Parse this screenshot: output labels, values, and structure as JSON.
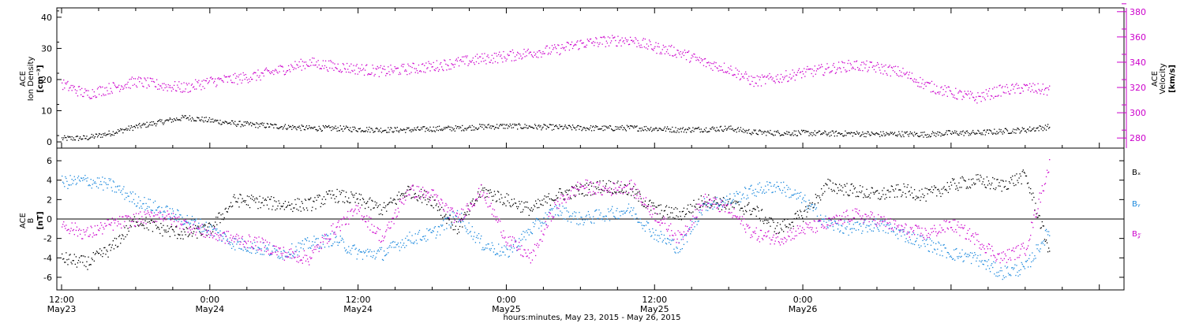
{
  "colors": {
    "density": "#000000",
    "velocity": "#cc00cc",
    "bx": "#000000",
    "by": "#1a88dd",
    "bz": "#cc00cc"
  },
  "chart_data": [
    {
      "type": "scatter",
      "panel": "top",
      "ylabel_left": [
        "ACE",
        "Ion Density",
        "[cm⁻³]"
      ],
      "ylabel_right": [
        "ACE",
        "Velocity",
        "[km/s]"
      ],
      "ylim_left": [
        -2,
        43
      ],
      "ylim_right": [
        272,
        383
      ],
      "yticks_left": [
        0,
        10,
        20,
        30,
        40
      ],
      "yticks_right": [
        280,
        300,
        320,
        340,
        360,
        380
      ],
      "series": [
        {
          "axis": "left",
          "color": "#000000",
          "hours": [
            0,
            2,
            4,
            6,
            8,
            10,
            12,
            14,
            16,
            18,
            20,
            22,
            24,
            26,
            28,
            30,
            32,
            34,
            36,
            38,
            40,
            42,
            44,
            46,
            48,
            50,
            52,
            54,
            56,
            58,
            60,
            62,
            64,
            66,
            68,
            70,
            72,
            74,
            76,
            78,
            80
          ],
          "values": [
            1.2,
            1.4,
            3.0,
            5.0,
            6.5,
            8.0,
            7.0,
            6.0,
            5.5,
            5.0,
            4.5,
            4.5,
            4.2,
            4.0,
            4.0,
            4.3,
            4.5,
            5.0,
            5.2,
            5.0,
            4.8,
            4.6,
            4.5,
            4.6,
            4.4,
            4.0,
            4.2,
            4.5,
            3.2,
            3.0,
            3.0,
            2.8,
            2.8,
            2.6,
            2.7,
            2.5,
            3.0,
            3.0,
            3.5,
            4.0,
            5.0
          ]
        },
        {
          "axis": "right",
          "color": "#cc00cc",
          "hours": [
            0,
            2,
            4,
            6,
            8,
            10,
            12,
            14,
            16,
            18,
            20,
            22,
            24,
            26,
            28,
            30,
            32,
            34,
            36,
            38,
            40,
            42,
            44,
            46,
            48,
            50,
            52,
            54,
            56,
            58,
            60,
            62,
            64,
            66,
            68,
            70,
            72,
            74,
            76,
            78,
            80
          ],
          "values": [
            323,
            315,
            320,
            325,
            322,
            320,
            325,
            327,
            330,
            335,
            340,
            337,
            335,
            333,
            335,
            337,
            340,
            343,
            345,
            348,
            350,
            355,
            357,
            358,
            352,
            348,
            340,
            335,
            325,
            328,
            332,
            335,
            338,
            336,
            332,
            322,
            316,
            312,
            318,
            320,
            318
          ]
        }
      ]
    },
    {
      "type": "scatter",
      "panel": "bottom",
      "ylabel": [
        "ACE",
        "B",
        "[nT]"
      ],
      "ylim": [
        -7.3,
        7.3
      ],
      "yticks": [
        -6,
        -4,
        -2,
        0,
        2,
        4,
        6
      ],
      "legend": [
        "Bₓ",
        "Bᵧ",
        "B𝓏"
      ],
      "series": [
        {
          "name": "Bₓ",
          "color": "#000000",
          "hours": [
            0,
            2,
            4,
            6,
            8,
            10,
            12,
            14,
            16,
            18,
            20,
            22,
            24,
            26,
            28,
            30,
            32,
            34,
            36,
            38,
            40,
            42,
            44,
            46,
            48,
            50,
            52,
            54,
            56,
            58,
            60,
            62,
            64,
            66,
            68,
            70,
            72,
            74,
            76,
            78,
            80
          ],
          "values": [
            -4.0,
            -4.5,
            -3.0,
            0.0,
            -1.0,
            -1.5,
            -1.0,
            2.0,
            1.8,
            1.5,
            1.5,
            2.5,
            2.0,
            1.0,
            3.0,
            2.0,
            -1.0,
            3.0,
            2.0,
            1.0,
            2.5,
            3.0,
            3.5,
            3.0,
            1.0,
            0.5,
            2.0,
            1.5,
            1.0,
            -1.0,
            0.5,
            3.5,
            3.0,
            2.5,
            3.0,
            2.5,
            3.5,
            4.0,
            3.5,
            4.5,
            -3.5
          ]
        },
        {
          "name": "Bᵧ",
          "color": "#1a88dd",
          "hours": [
            0,
            2,
            4,
            6,
            8,
            10,
            12,
            14,
            16,
            18,
            20,
            22,
            24,
            26,
            28,
            30,
            32,
            34,
            36,
            38,
            40,
            42,
            44,
            46,
            48,
            50,
            52,
            54,
            56,
            58,
            60,
            62,
            64,
            66,
            68,
            70,
            72,
            74,
            76,
            78,
            80
          ],
          "values": [
            3.8,
            4.0,
            3.5,
            2.0,
            1.0,
            0.0,
            -1.0,
            -2.5,
            -3.0,
            -3.5,
            -2.5,
            -2.0,
            -3.5,
            -3.5,
            -2.0,
            -1.5,
            0.5,
            -2.5,
            -3.5,
            -1.0,
            1.0,
            0.0,
            0.5,
            1.0,
            -1.5,
            -3.0,
            1.5,
            2.0,
            3.0,
            3.5,
            2.0,
            -0.5,
            -1.0,
            -0.5,
            -1.5,
            -2.5,
            -3.5,
            -4.0,
            -5.5,
            -5.0,
            -1.0
          ]
        },
        {
          "name": "B𝓏",
          "color": "#cc00cc",
          "hours": [
            0,
            2,
            4,
            6,
            8,
            10,
            12,
            14,
            16,
            18,
            20,
            22,
            24,
            26,
            28,
            30,
            32,
            34,
            36,
            38,
            40,
            42,
            44,
            46,
            48,
            50,
            52,
            54,
            56,
            58,
            60,
            62,
            64,
            66,
            68,
            70,
            72,
            74,
            76,
            78,
            80
          ],
          "values": [
            -0.5,
            -1.5,
            -0.5,
            0.0,
            0.5,
            -0.5,
            -1.5,
            -2.0,
            -2.5,
            -3.5,
            -4.0,
            -1.0,
            1.0,
            -2.0,
            3.0,
            2.5,
            0.0,
            3.0,
            -2.0,
            -4.0,
            1.5,
            3.5,
            3.0,
            3.5,
            0.5,
            -2.0,
            2.0,
            1.0,
            -1.5,
            -2.0,
            -1.0,
            -0.5,
            0.5,
            0.0,
            -1.0,
            -1.5,
            -0.5,
            -2.0,
            -4.0,
            -3.0,
            6.0
          ]
        }
      ]
    }
  ],
  "xaxis": {
    "start_hour": 0,
    "end_hour": 86,
    "labels": [
      {
        "hours": 0,
        "time": "12:00",
        "date": "May23"
      },
      {
        "hours": 12,
        "time": "0:00",
        "date": "May24"
      },
      {
        "hours": 24,
        "time": "12:00",
        "date": "May24"
      },
      {
        "hours": 36,
        "time": "0:00",
        "date": "May25"
      },
      {
        "hours": 48,
        "time": "12:00",
        "date": "May25"
      },
      {
        "hours": 60,
        "time": "0:00",
        "date": "May26"
      }
    ],
    "title": "hours:minutes, May 23, 2015 - May 26, 2015"
  }
}
